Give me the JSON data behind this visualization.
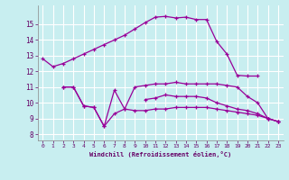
{
  "xlabel": "Windchill (Refroidissement éolien,°C)",
  "bg_color": "#c8eef0",
  "grid_color": "#ffffff",
  "line_color": "#990099",
  "x_ticks": [
    0,
    1,
    2,
    3,
    4,
    5,
    6,
    7,
    8,
    9,
    10,
    11,
    12,
    13,
    14,
    15,
    16,
    17,
    18,
    19,
    20,
    21,
    22,
    23
  ],
  "y_ticks": [
    8,
    9,
    10,
    11,
    12,
    13,
    14,
    15
  ],
  "ylim": [
    7.6,
    16.2
  ],
  "xlim": [
    -0.5,
    23.5
  ],
  "series": [
    {
      "x": [
        0,
        1,
        2,
        3,
        4,
        5,
        6,
        7,
        8,
        9,
        10,
        11,
        12,
        13,
        14,
        15,
        16,
        17,
        18,
        19,
        20,
        21
      ],
      "y": [
        12.8,
        12.3,
        12.5,
        12.8,
        13.1,
        13.4,
        13.7,
        14.0,
        14.3,
        14.7,
        15.1,
        15.45,
        15.5,
        15.4,
        15.45,
        15.3,
        15.3,
        13.9,
        13.1,
        11.75,
        11.7,
        11.7
      ]
    },
    {
      "x": [
        2,
        3,
        4,
        5,
        6,
        7,
        8,
        9,
        10,
        11,
        12,
        13,
        14,
        15,
        16,
        17,
        18,
        19,
        20,
        21,
        22,
        23
      ],
      "y": [
        11.0,
        11.0,
        9.8,
        9.7,
        8.5,
        10.8,
        9.6,
        11.0,
        11.1,
        11.2,
        11.2,
        11.3,
        11.2,
        11.2,
        11.2,
        11.2,
        11.1,
        11.0,
        10.4,
        10.0,
        9.0,
        8.8
      ]
    },
    {
      "x": [
        10,
        11,
        12,
        13,
        14,
        15,
        16,
        17,
        18,
        19,
        20,
        21,
        22,
        23
      ],
      "y": [
        10.2,
        10.3,
        10.5,
        10.4,
        10.4,
        10.4,
        10.3,
        10.0,
        9.8,
        9.6,
        9.5,
        9.3,
        9.0,
        8.8
      ]
    },
    {
      "x": [
        2,
        3,
        4,
        5,
        6,
        7,
        8,
        9,
        10,
        11,
        12,
        13,
        14,
        15,
        16,
        17,
        18,
        19,
        20,
        21,
        22,
        23
      ],
      "y": [
        11.0,
        11.0,
        9.8,
        9.7,
        8.5,
        9.3,
        9.6,
        9.5,
        9.5,
        9.6,
        9.6,
        9.7,
        9.7,
        9.7,
        9.7,
        9.6,
        9.5,
        9.4,
        9.3,
        9.2,
        9.0,
        8.8
      ]
    }
  ]
}
